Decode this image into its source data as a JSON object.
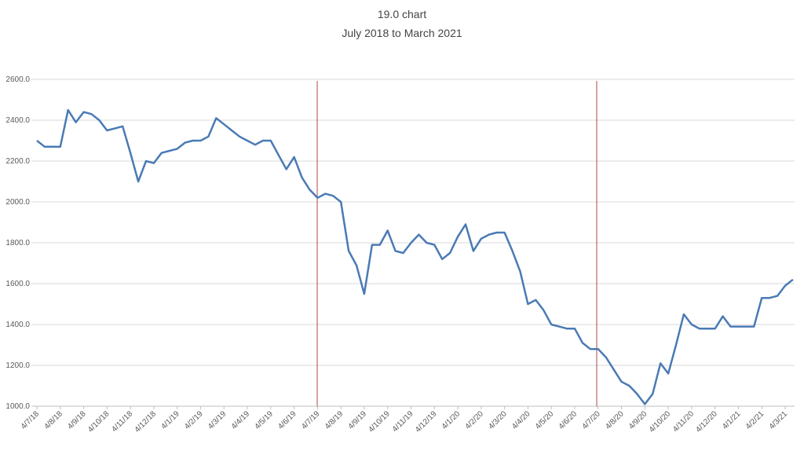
{
  "chart_data": {
    "type": "line",
    "title": "19.0 chart",
    "subtitle": "July 2018 to March 2021",
    "categories": [
      "4/7/18",
      null,
      null,
      "4/8/18",
      null,
      null,
      "4/9/18",
      null,
      null,
      "4/10/18",
      null,
      null,
      "4/11/18",
      null,
      null,
      "4/12/18",
      null,
      null,
      "4/1/19",
      null,
      null,
      "4/2/19",
      null,
      null,
      "4/3/19",
      null,
      null,
      "4/4/19",
      null,
      null,
      "4/5/19",
      null,
      null,
      "4/6/19",
      null,
      null,
      "4/7/19",
      null,
      null,
      "4/8/19",
      null,
      null,
      "4/9/19",
      null,
      null,
      "4/10/19",
      null,
      null,
      "4/11/19",
      null,
      null,
      "4/12/19",
      null,
      null,
      "4/1/20",
      null,
      null,
      "4/2/20",
      null,
      null,
      "4/3/20",
      null,
      null,
      "4/4/20",
      null,
      null,
      "4/5/20",
      null,
      null,
      "4/6/20",
      null,
      null,
      "4/7/20",
      null,
      null,
      "4/8/20",
      null,
      null,
      "4/9/20",
      null,
      null,
      "4/10/20",
      null,
      null,
      "4/11/20",
      null,
      null,
      "4/12/20",
      null,
      null,
      "4/1/21",
      null,
      null,
      "4/2/21",
      null,
      null,
      "4/3/21",
      null
    ],
    "series": [
      {
        "color": "#4a7ab5",
        "values": [
          2300,
          2270,
          2270,
          2270,
          2450,
          2390,
          2440,
          2430,
          2400,
          2350,
          2360,
          2370,
          2240,
          2100,
          2200,
          2190,
          2240,
          2250,
          2260,
          2290,
          2300,
          2300,
          2320,
          2410,
          2380,
          2350,
          2320,
          2300,
          2280,
          2300,
          2300,
          2230,
          2160,
          2220,
          2120,
          2060,
          2020,
          2040,
          2030,
          2000,
          1760,
          1690,
          1550,
          1790,
          1790,
          1860,
          1760,
          1750,
          1800,
          1840,
          1800,
          1790,
          1720,
          1750,
          1830,
          1890,
          1760,
          1820,
          1840,
          1850,
          1850,
          1760,
          1660,
          1500,
          1520,
          1470,
          1400,
          1390,
          1380,
          1380,
          1310,
          1280,
          1280,
          1240,
          1180,
          1120,
          1100,
          1060,
          1010,
          1060,
          1210,
          1160,
          1300,
          1450,
          1400,
          1380,
          1380,
          1380,
          1440,
          1390,
          1390,
          1390,
          1390,
          1530,
          1530,
          1540,
          1590,
          1620
        ]
      }
    ],
    "ylim": [
      1000,
      2600
    ],
    "yticks": [
      {
        "value": 1000,
        "label": "1000.0"
      },
      {
        "value": 1200,
        "label": "1200.0"
      },
      {
        "value": 1400,
        "label": "1400.0"
      },
      {
        "value": 1600,
        "label": "1600.0"
      },
      {
        "value": 1800,
        "label": "1800.0"
      },
      {
        "value": 2000,
        "label": "2000.0"
      },
      {
        "value": 2200,
        "label": "2200.0"
      },
      {
        "value": 2400,
        "label": "2400.0"
      },
      {
        "value": 2600,
        "label": "2600.0"
      }
    ],
    "grid": true
  }
}
